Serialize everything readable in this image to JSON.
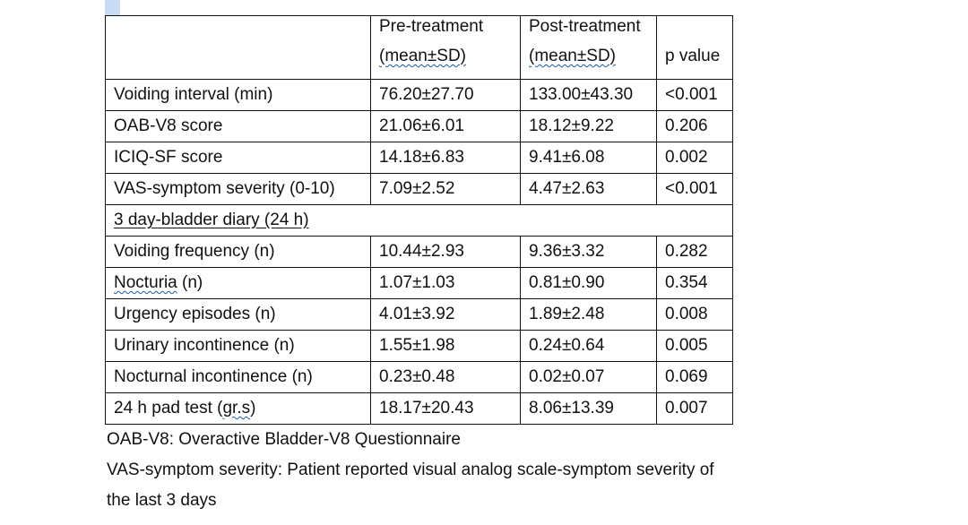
{
  "table": {
    "headers": {
      "pre_line1": "Pre-treatment",
      "pre_line2": "(mean±SD)",
      "post_line1": "Post-treatment",
      "post_line2": "(mean±SD)",
      "p_value": "p value"
    },
    "rows": [
      {
        "label": "Voiding interval (min)",
        "pre": "76.20±27.70",
        "post": "133.00±43.30",
        "p": "<0.001"
      },
      {
        "label": "OAB-V8 score",
        "pre": "21.06±6.01",
        "post": "18.12±9.22",
        "p": "0.206"
      },
      {
        "label": "ICIQ-SF score",
        "pre": "14.18±6.83",
        "post": "9.41±6.08",
        "p": "0.002"
      },
      {
        "label": "VAS-symptom severity (0-10)",
        "pre": "7.09±2.52",
        "post": "4.47±2.63",
        "p": "<0.001"
      }
    ],
    "section_label": "3 day-bladder diary (24 h)",
    "diary_rows": [
      {
        "label": "Voiding frequency (n)",
        "pre": "10.44±2.93",
        "post": "9.36±3.32",
        "p": "0.282"
      },
      {
        "label_word": "Nocturia",
        "label_suffix": " (n)",
        "pre": "1.07±1.03",
        "post": "0.81±0.90",
        "p": "0.354"
      },
      {
        "label": "Urgency episodes (n)",
        "pre": "4.01±3.92",
        "post": "1.89±2.48",
        "p": "0.008"
      },
      {
        "label": "Urinary incontinence (n)",
        "pre": "1.55±1.98",
        "post": "0.24±0.64",
        "p": "0.005"
      },
      {
        "label": "Nocturnal incontinence (n)",
        "pre": "0.23±0.48",
        "post": "0.02±0.07",
        "p": "0.069"
      },
      {
        "label_prefix": "24 h pad test (",
        "label_word": "gr.s",
        "label_suffix": ")",
        "pre": "18.17±20.43",
        "post": "8.06±13.39",
        "p": "0.007"
      }
    ]
  },
  "footnotes": {
    "line1": "OAB-V8: Overactive Bladder-V8 Questionnaire",
    "line2": "VAS-symptom severity: Patient reported visual analog scale-symptom severity of",
    "line3": "the last 3 days"
  }
}
